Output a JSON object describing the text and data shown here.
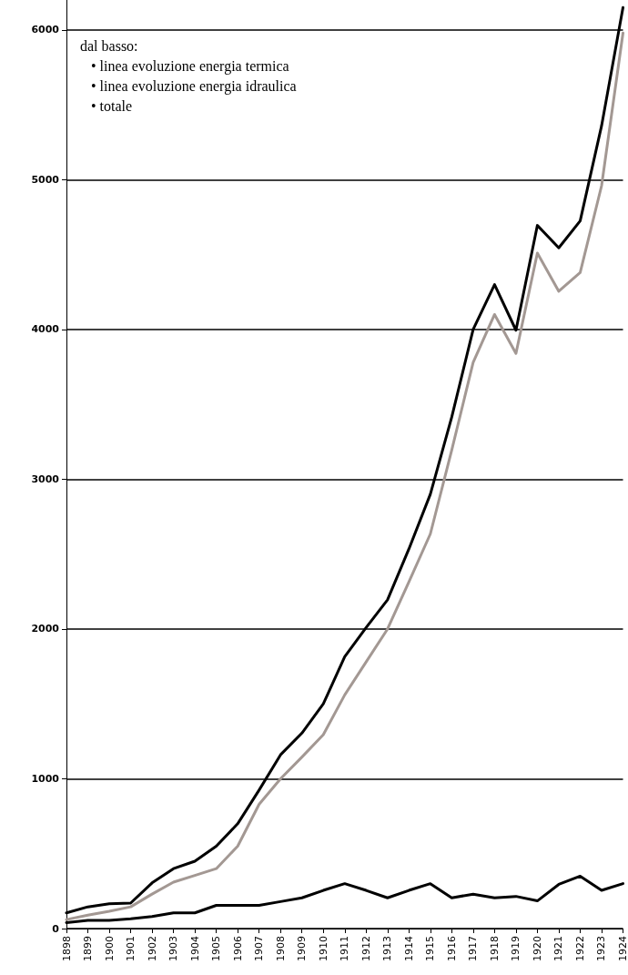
{
  "chart_data": {
    "type": "line",
    "categories": [
      "1898",
      "1899",
      "1900",
      "1901",
      "1902",
      "1903",
      "1904",
      "1905",
      "1906",
      "1907",
      "1908",
      "1909",
      "1910",
      "1911",
      "1912",
      "1913",
      "1914",
      "1915",
      "1916",
      "1917",
      "1918",
      "1919",
      "1920",
      "1921",
      "1922",
      "1923",
      "1924"
    ],
    "series": [
      {
        "color": "#000000",
        "values": [
          40,
          55,
          55,
          65,
          80,
          105,
          105,
          155,
          155,
          155,
          180,
          205,
          255,
          300,
          255,
          205,
          255,
          300,
          205,
          230,
          205,
          215,
          185,
          295,
          350,
          255,
          300
        ]
      },
      {
        "color": "#a39893",
        "values": [
          60,
          90,
          115,
          145,
          230,
          310,
          355,
          400,
          550,
          830,
          1000,
          1145,
          1295,
          1560,
          1780,
          2000,
          2315,
          2635,
          3195,
          3780,
          4100,
          3840,
          4510,
          4255,
          4380,
          4960,
          5980
        ]
      },
      {
        "color": "#000000",
        "values": [
          105,
          145,
          165,
          170,
          305,
          400,
          450,
          550,
          700,
          925,
          1160,
          1305,
          1500,
          1815,
          2010,
          2195,
          2535,
          2900,
          3415,
          4000,
          4300,
          3995,
          4695,
          4545,
          4725,
          5360,
          6150
        ]
      }
    ],
    "ylim": [
      0,
      6200
    ],
    "yticks": [
      0,
      1000,
      2000,
      3000,
      4000,
      5000,
      6000
    ],
    "grid": "y",
    "marker": "none",
    "line_style": "solid",
    "annotations": [
      "dal basso:",
      "• linea evoluzione energia termica",
      "• linea evoluzione energia idraulica",
      "• totale"
    ]
  }
}
